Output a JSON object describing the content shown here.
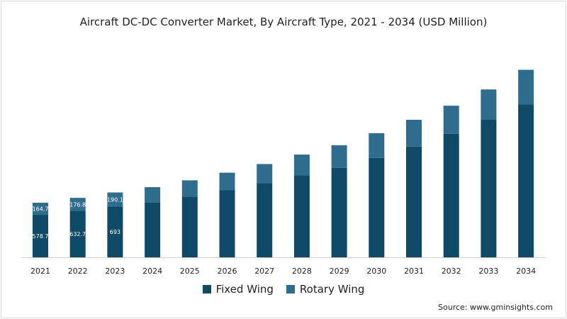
{
  "chart_data": {
    "type": "bar",
    "stacked": true,
    "title": "Aircraft DC-DC Converter Market, By Aircraft Type, 2021 - 2034 (USD Million)",
    "xlabel": "",
    "ylabel": "",
    "categories": [
      "2021",
      "2022",
      "2023",
      "2024",
      "2025",
      "2026",
      "2027",
      "2028",
      "2029",
      "2030",
      "2031",
      "2032",
      "2033",
      "2034"
    ],
    "series": [
      {
        "name": "Fixed Wing",
        "color": "#0e4a66",
        "values": [
          578.7,
          632.7,
          693,
          750,
          826,
          912,
          1008,
          1114,
          1219,
          1354,
          1507,
          1680,
          1872,
          2083
        ],
        "labels": [
          "578.7",
          "632.7",
          "693"
        ]
      },
      {
        "name": "Rotary Wing",
        "color": "#2f6d8e",
        "values": [
          164.7,
          176.8,
          190.1,
          205,
          222,
          240,
          262,
          285,
          307,
          336,
          365,
          384,
          413,
          470
        ],
        "labels": [
          "164.7",
          "176.8",
          "190.1"
        ]
      }
    ],
    "ylim": [
      0,
      2700
    ],
    "grid": false,
    "legend_position": "bottom-center"
  },
  "source": "Source: www.gminsights.com"
}
